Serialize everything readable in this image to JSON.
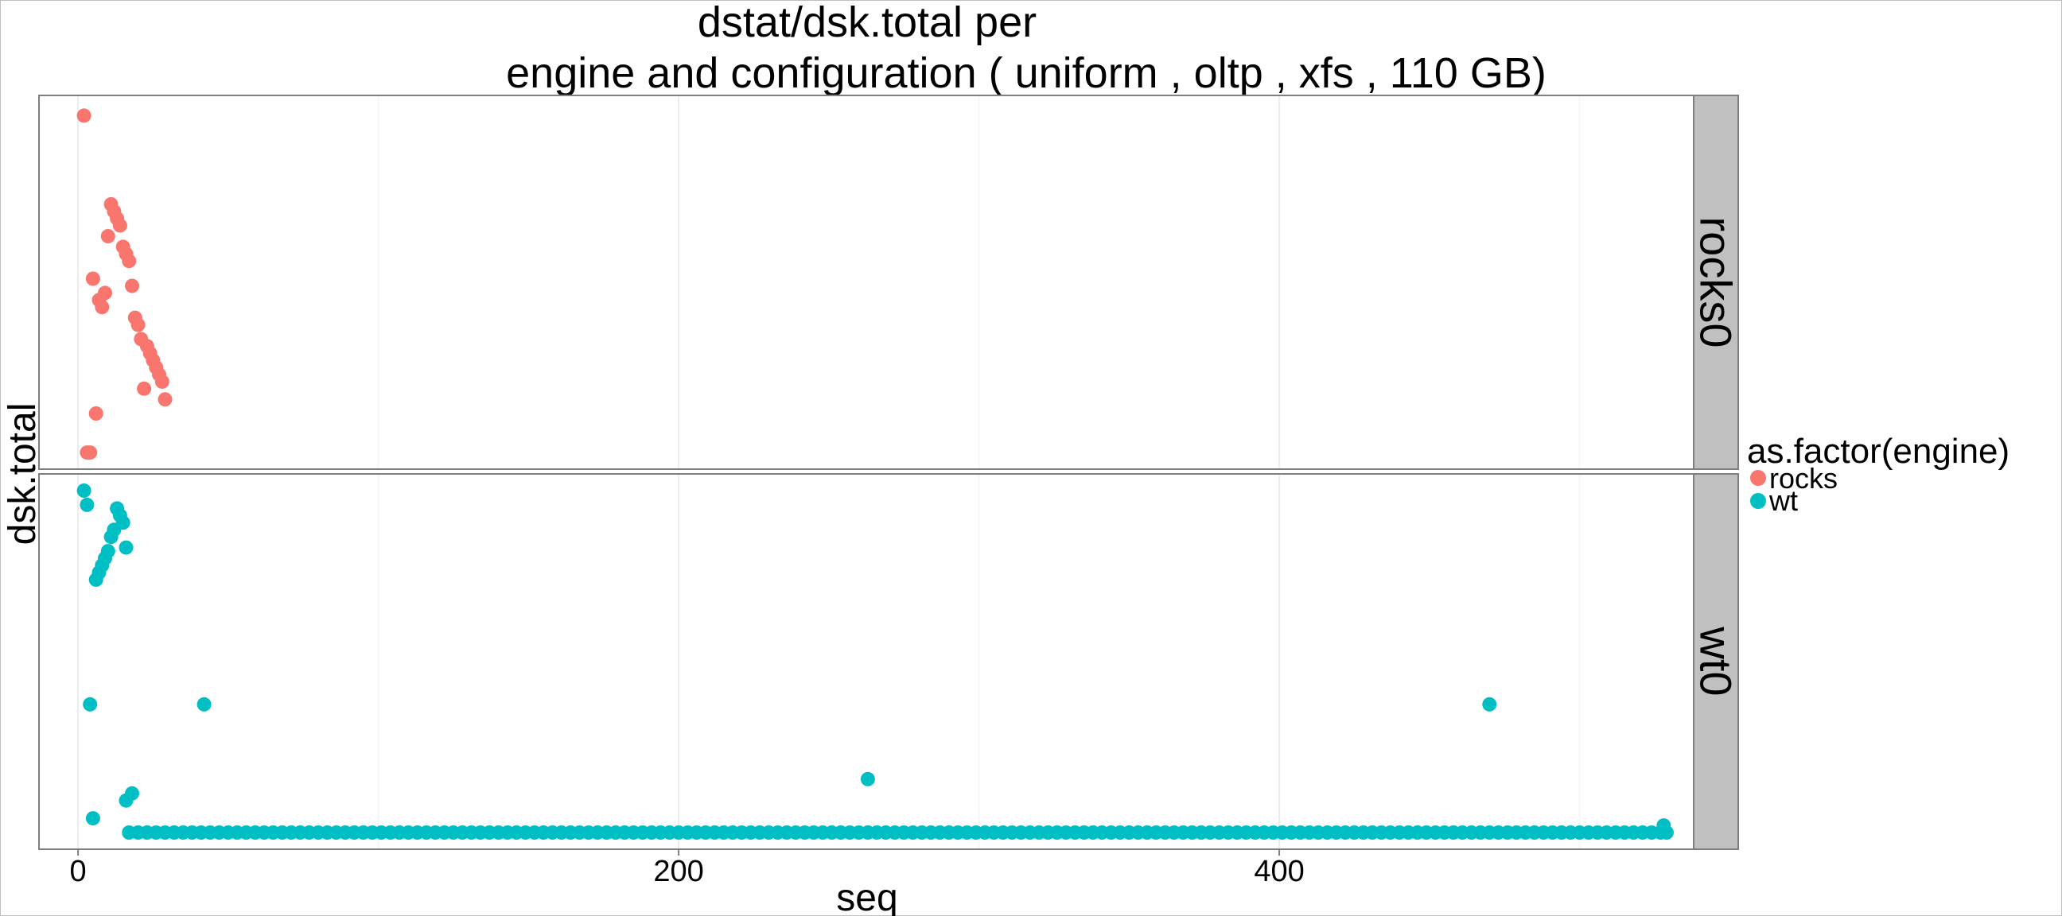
{
  "chart_data": {
    "type": "scatter",
    "title_line1": "dstat/dsk.total per",
    "title_line2": "engine and configuration ( uniform , oltp , xfs ,  110 GB)",
    "xlabel": "seq",
    "ylabel": "dsk.total",
    "xlim": [
      -13,
      538
    ],
    "x_ticks": [
      0,
      200,
      400
    ],
    "x_tick_labels": [
      "0",
      "200",
      "400"
    ],
    "grid": true,
    "legend": {
      "title": "as.factor(engine)",
      "placement": "right",
      "entries": [
        {
          "label": "rocks",
          "color": "#F8766D"
        },
        {
          "label": "wt",
          "color": "#00BFC4"
        }
      ]
    },
    "facets": [
      {
        "label": "rocks0",
        "series": "rocks",
        "color": "#F8766D",
        "ylim": [
          0,
          100
        ],
        "points": [
          [
            2,
            97
          ],
          [
            3,
            2
          ],
          [
            4,
            2
          ],
          [
            5,
            51
          ],
          [
            6,
            13
          ],
          [
            7,
            45
          ],
          [
            8,
            43
          ],
          [
            9,
            47
          ],
          [
            10,
            63
          ],
          [
            11,
            72
          ],
          [
            12,
            70
          ],
          [
            13,
            68
          ],
          [
            14,
            66
          ],
          [
            15,
            60
          ],
          [
            16,
            58
          ],
          [
            17,
            56
          ],
          [
            18,
            49
          ],
          [
            19,
            40
          ],
          [
            20,
            38
          ],
          [
            21,
            34
          ],
          [
            22,
            20
          ],
          [
            23,
            32
          ],
          [
            24,
            30
          ],
          [
            25,
            28
          ],
          [
            26,
            26
          ],
          [
            27,
            24
          ],
          [
            28,
            22
          ],
          [
            29,
            17
          ]
        ]
      },
      {
        "label": "wt0",
        "series": "wt",
        "color": "#00BFC4",
        "ylim": [
          0,
          100
        ],
        "points": [
          [
            2,
            98
          ],
          [
            3,
            94
          ],
          [
            4,
            38
          ],
          [
            5,
            6
          ],
          [
            6,
            73
          ],
          [
            7,
            75
          ],
          [
            8,
            77
          ],
          [
            9,
            79
          ],
          [
            10,
            81
          ],
          [
            11,
            85
          ],
          [
            12,
            87
          ],
          [
            13,
            93
          ],
          [
            14,
            91
          ],
          [
            15,
            89
          ],
          [
            16,
            82
          ],
          [
            16,
            11
          ],
          [
            18,
            13
          ],
          [
            42,
            38
          ],
          [
            263,
            17
          ],
          [
            470,
            38
          ],
          [
            528,
            4
          ],
          [
            529,
            2
          ]
        ],
        "baseline": {
          "from": 17,
          "to": 527,
          "step": 3,
          "value": 2
        }
      }
    ]
  }
}
